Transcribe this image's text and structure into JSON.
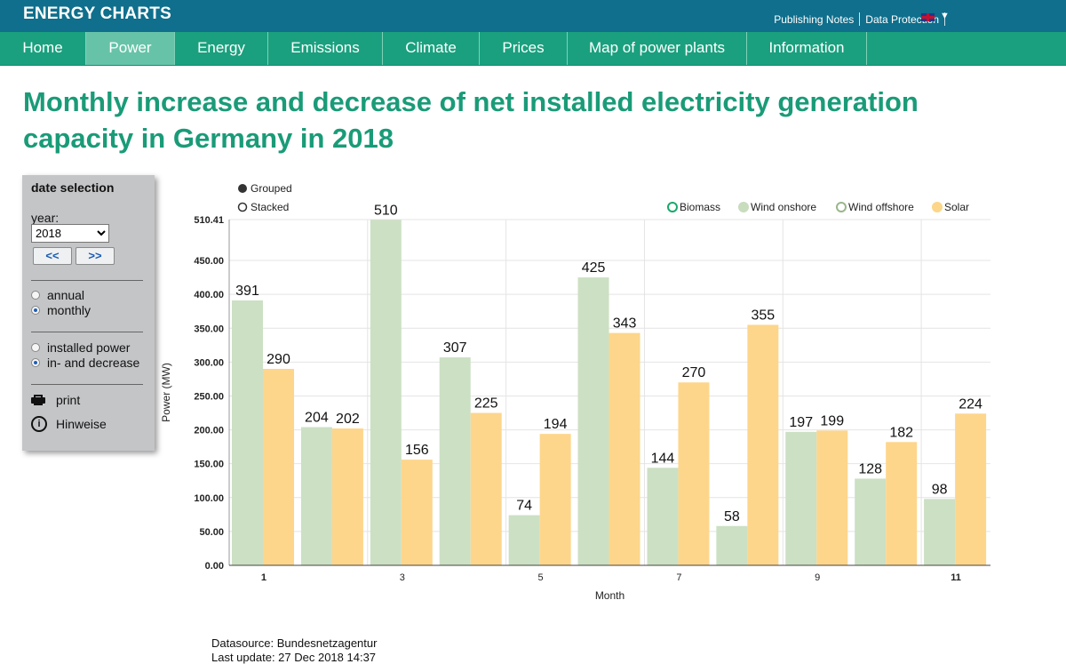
{
  "header": {
    "brand": "ENERGY CHARTS",
    "links": [
      "Publishing Notes",
      "Data Protection"
    ]
  },
  "nav": [
    "Home",
    "Power",
    "Energy",
    "Emissions",
    "Climate",
    "Prices",
    "Map of power plants",
    "Information"
  ],
  "page_title": "Monthly increase and decrease of net installed electricity generation capacity in Germany in 2018",
  "panel": {
    "title": "date selection",
    "year_label": "year:",
    "year_value": "2018",
    "prev_label": "<<",
    "next_label": ">>",
    "period_options": [
      "annual",
      "monthly"
    ],
    "mode_options": [
      "installed power",
      "in- and decrease"
    ],
    "print_label": "print",
    "notes_label": "Hinweise"
  },
  "chart_data": {
    "type": "bar",
    "title": "",
    "xlabel": "Month",
    "ylabel": "Power (MW)",
    "ylim": [
      0,
      510.41
    ],
    "yticks": [
      "0.00",
      "50.00",
      "100.00",
      "150.00",
      "200.00",
      "250.00",
      "300.00",
      "350.00",
      "400.00",
      "450.00",
      "510.41"
    ],
    "xticks": [
      "1",
      "3",
      "5",
      "7",
      "9",
      "11"
    ],
    "categories": [
      "1",
      "2",
      "3",
      "4",
      "5",
      "6",
      "7",
      "8",
      "9",
      "10",
      "11"
    ],
    "view_modes": [
      "Grouped",
      "Stacked"
    ],
    "legend": [
      {
        "name": "Biomass",
        "color": "#1aa86a",
        "style": "hollow"
      },
      {
        "name": "Wind onshore",
        "color": "#c8dcbe",
        "style": "filled"
      },
      {
        "name": "Wind offshore",
        "color": "#9ab68c",
        "style": "hollow"
      },
      {
        "name": "Solar",
        "color": "#fcd689",
        "style": "filled"
      }
    ],
    "series": [
      {
        "name": "Wind onshore",
        "color": "#cce0c4",
        "values": [
          391,
          204,
          510,
          307,
          74,
          425,
          144,
          58,
          197,
          128,
          98
        ]
      },
      {
        "name": "Solar",
        "color": "#fdd68c",
        "values": [
          290,
          202,
          156,
          225,
          194,
          343,
          270,
          355,
          199,
          182,
          224
        ]
      }
    ],
    "legend_position": "top-right"
  },
  "footer": {
    "datasource": "Datasource: Bundesnetzagentur",
    "last_update": "Last update: 27 Dec 2018 14:37"
  }
}
